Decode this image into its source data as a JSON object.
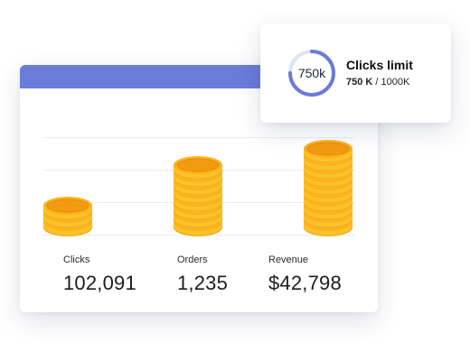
{
  "metrics": [
    {
      "label": "Clicks",
      "value": "102,091"
    },
    {
      "label": "Orders",
      "value": "1,235"
    },
    {
      "label": "Revenue",
      "value": "$42,798"
    }
  ],
  "coin_stacks": [
    3,
    8,
    10
  ],
  "limit": {
    "ring_text": "750k",
    "title": "Clicks limit",
    "used": "750 K",
    "separator": " / ",
    "total": "1000K",
    "fraction": 0.75
  },
  "colors": {
    "header": "#6a7bd9",
    "ring": "#6a7bd9",
    "ring_track": "#dfe3f7",
    "coin_face": "#ffb21c",
    "coin_inner": "#f39a10",
    "coin_edge": "#fbc32a",
    "coin_rim": "#e38d07"
  }
}
